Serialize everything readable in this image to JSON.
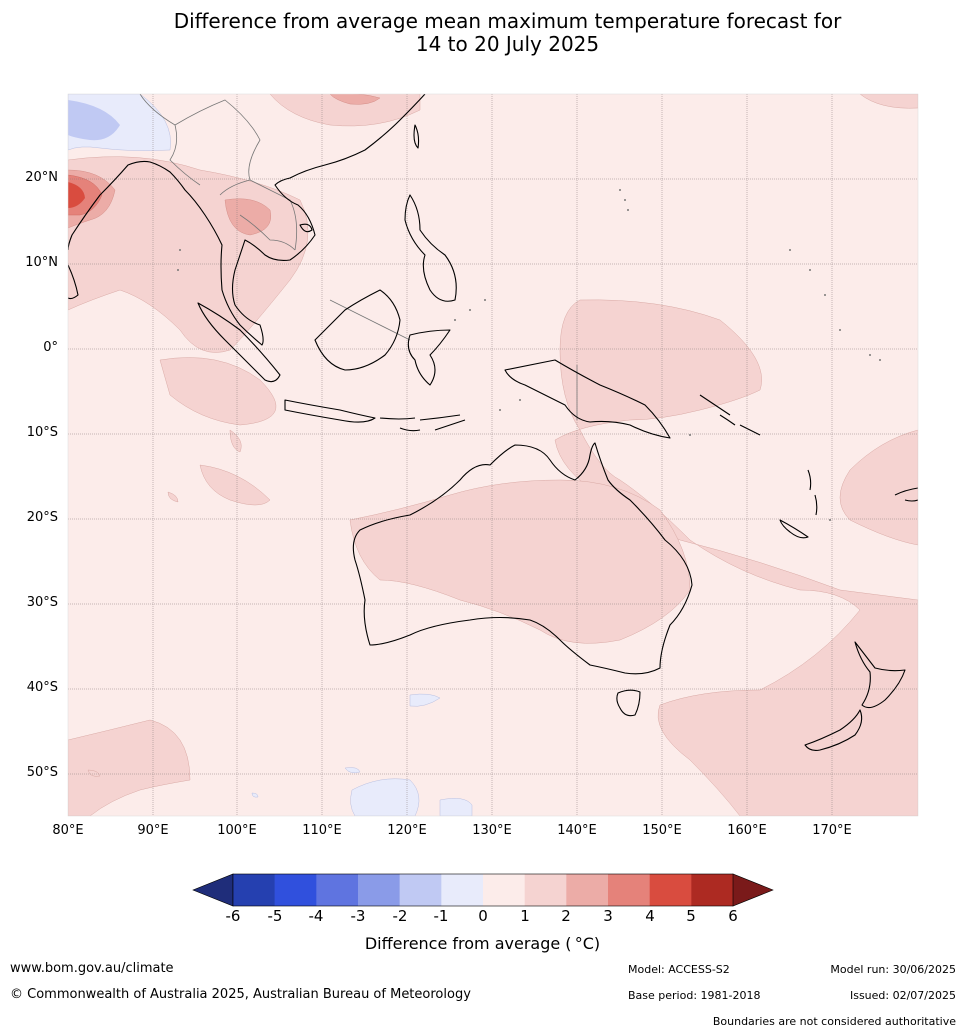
{
  "title": {
    "line1": "Difference from average mean maximum temperature forecast for",
    "line2": "14 to 20 July 2025"
  },
  "map": {
    "region": "Australia, South-East Asia and South-West Pacific",
    "lon_labels": [
      "80°E",
      "90°E",
      "100°E",
      "110°E",
      "120°E",
      "130°E",
      "140°E",
      "150°E",
      "160°E",
      "170°E"
    ],
    "lat_labels": [
      "20°N",
      "10°N",
      "0°",
      "10°S",
      "20°S",
      "30°S",
      "40°S",
      "50°S"
    ],
    "lon_range": [
      80,
      180
    ],
    "lat_range": [
      -55,
      30
    ],
    "grid": true
  },
  "colorbar": {
    "title": "Difference from average ( °C)",
    "ticks": [
      "-6",
      "-5",
      "-4",
      "-3",
      "-2",
      "-1",
      "0",
      "1",
      "2",
      "3",
      "4",
      "5",
      "6"
    ],
    "under_color": "#1f2d7a",
    "over_color": "#7a1a1a",
    "colors": [
      "#2540b0",
      "#3050dd",
      "#5f74e0",
      "#8a9be8",
      "#c0c9f3",
      "#e8ebfb",
      "#fcecea",
      "#f5d3d1",
      "#ecaca7",
      "#e5827a",
      "#d94c3f",
      "#ad2a22"
    ]
  },
  "footer": {
    "website": "www.bom.gov.au/climate",
    "copyright": "© Commonwealth of Australia 2025, Australian Bureau of Meteorology",
    "model": "Model: ACCESS-S2",
    "base_period": "Base period: 1981-2018",
    "model_run": "Model run: 30/06/2025",
    "issued": "Issued: 02/07/2025",
    "disclaimer": "Boundaries are not considered authoritative"
  }
}
